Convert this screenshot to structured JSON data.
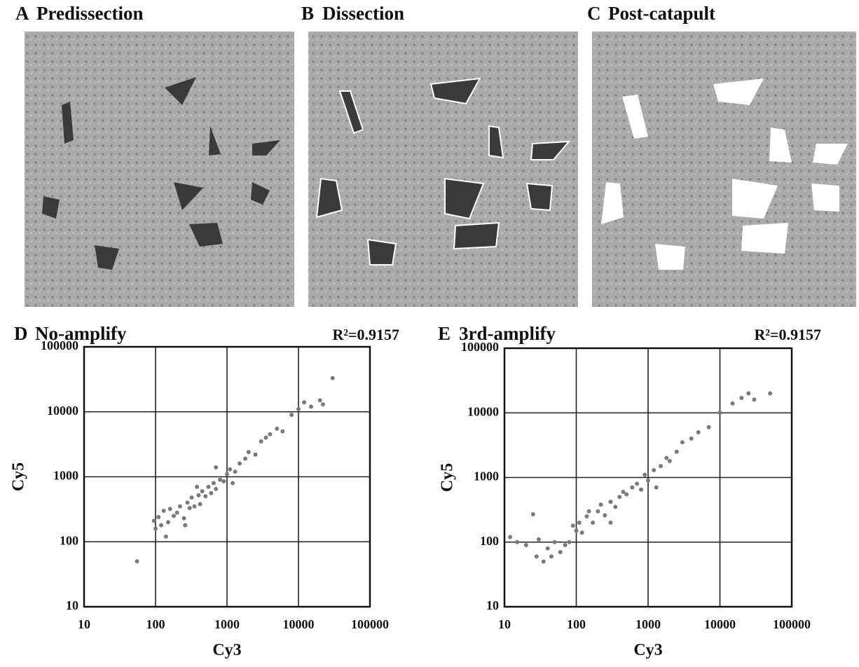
{
  "panels": [
    {
      "label": "A",
      "title": "Predissection"
    },
    {
      "label": "B",
      "title": "Dissection"
    },
    {
      "label": "C",
      "title": "Post-catapult"
    }
  ],
  "chart_data": [
    {
      "type": "scatter",
      "label": "D",
      "title": "No-amplify",
      "annotation": "R²=0.9157",
      "x_label": "Cy3",
      "y_label": "Cy5",
      "log_x": true,
      "log_y": true,
      "grid": true,
      "color": "#7a7a7a",
      "xlim": [
        10,
        100000
      ],
      "ylim": [
        10,
        100000
      ],
      "xticks": [
        10,
        100,
        1000,
        10000,
        100000
      ],
      "yticks": [
        10,
        100,
        1000,
        10000,
        100000
      ],
      "x": [
        55,
        95,
        100,
        110,
        120,
        130,
        150,
        160,
        180,
        200,
        220,
        250,
        280,
        300,
        320,
        350,
        400,
        420,
        450,
        500,
        550,
        600,
        650,
        700,
        800,
        900,
        1000,
        1100,
        1300,
        1500,
        1800,
        2000,
        2500,
        3000,
        3500,
        4000,
        5000,
        6000,
        8000,
        10000,
        12000,
        15000,
        20000,
        22000,
        30000,
        140,
        260,
        380,
        700,
        1200
      ],
      "y": [
        50,
        210,
        160,
        240,
        180,
        300,
        200,
        320,
        250,
        280,
        350,
        230,
        400,
        330,
        480,
        350,
        520,
        380,
        600,
        500,
        700,
        560,
        800,
        650,
        900,
        850,
        1100,
        1300,
        1200,
        1600,
        1900,
        2400,
        2200,
        3500,
        4000,
        4500,
        5500,
        5000,
        9000,
        11000,
        14000,
        12000,
        15000,
        13000,
        33000,
        120,
        180,
        700,
        1400,
        800
      ]
    },
    {
      "type": "scatter",
      "label": "E",
      "title": "3rd-amplify",
      "annotation": "R²=0.9157",
      "x_label": "Cy3",
      "y_label": "Cy5",
      "log_x": true,
      "log_y": true,
      "grid": true,
      "color": "#7a7a7a",
      "xlim": [
        10,
        100000
      ],
      "ylim": [
        10,
        100000
      ],
      "xticks": [
        10,
        100,
        1000,
        10000,
        100000
      ],
      "yticks": [
        10,
        100,
        1000,
        10000,
        100000
      ],
      "x": [
        12,
        15,
        20,
        25,
        28,
        30,
        35,
        40,
        45,
        50,
        60,
        70,
        80,
        90,
        100,
        110,
        120,
        140,
        150,
        170,
        200,
        220,
        250,
        300,
        350,
        400,
        450,
        500,
        600,
        700,
        800,
        900,
        1000,
        1200,
        1500,
        1800,
        2000,
        2500,
        3000,
        4000,
        5000,
        7000,
        10000,
        15000,
        20000,
        25000,
        30000,
        50000,
        300,
        1300
      ],
      "y": [
        120,
        100,
        90,
        270,
        60,
        110,
        50,
        80,
        60,
        100,
        70,
        90,
        100,
        180,
        150,
        200,
        140,
        250,
        300,
        200,
        300,
        380,
        260,
        420,
        350,
        500,
        600,
        550,
        700,
        800,
        650,
        1100,
        900,
        1300,
        1500,
        2000,
        1800,
        2500,
        3500,
        4000,
        5000,
        6000,
        10000,
        14000,
        17000,
        20000,
        16000,
        20000,
        200,
        700
      ]
    }
  ]
}
